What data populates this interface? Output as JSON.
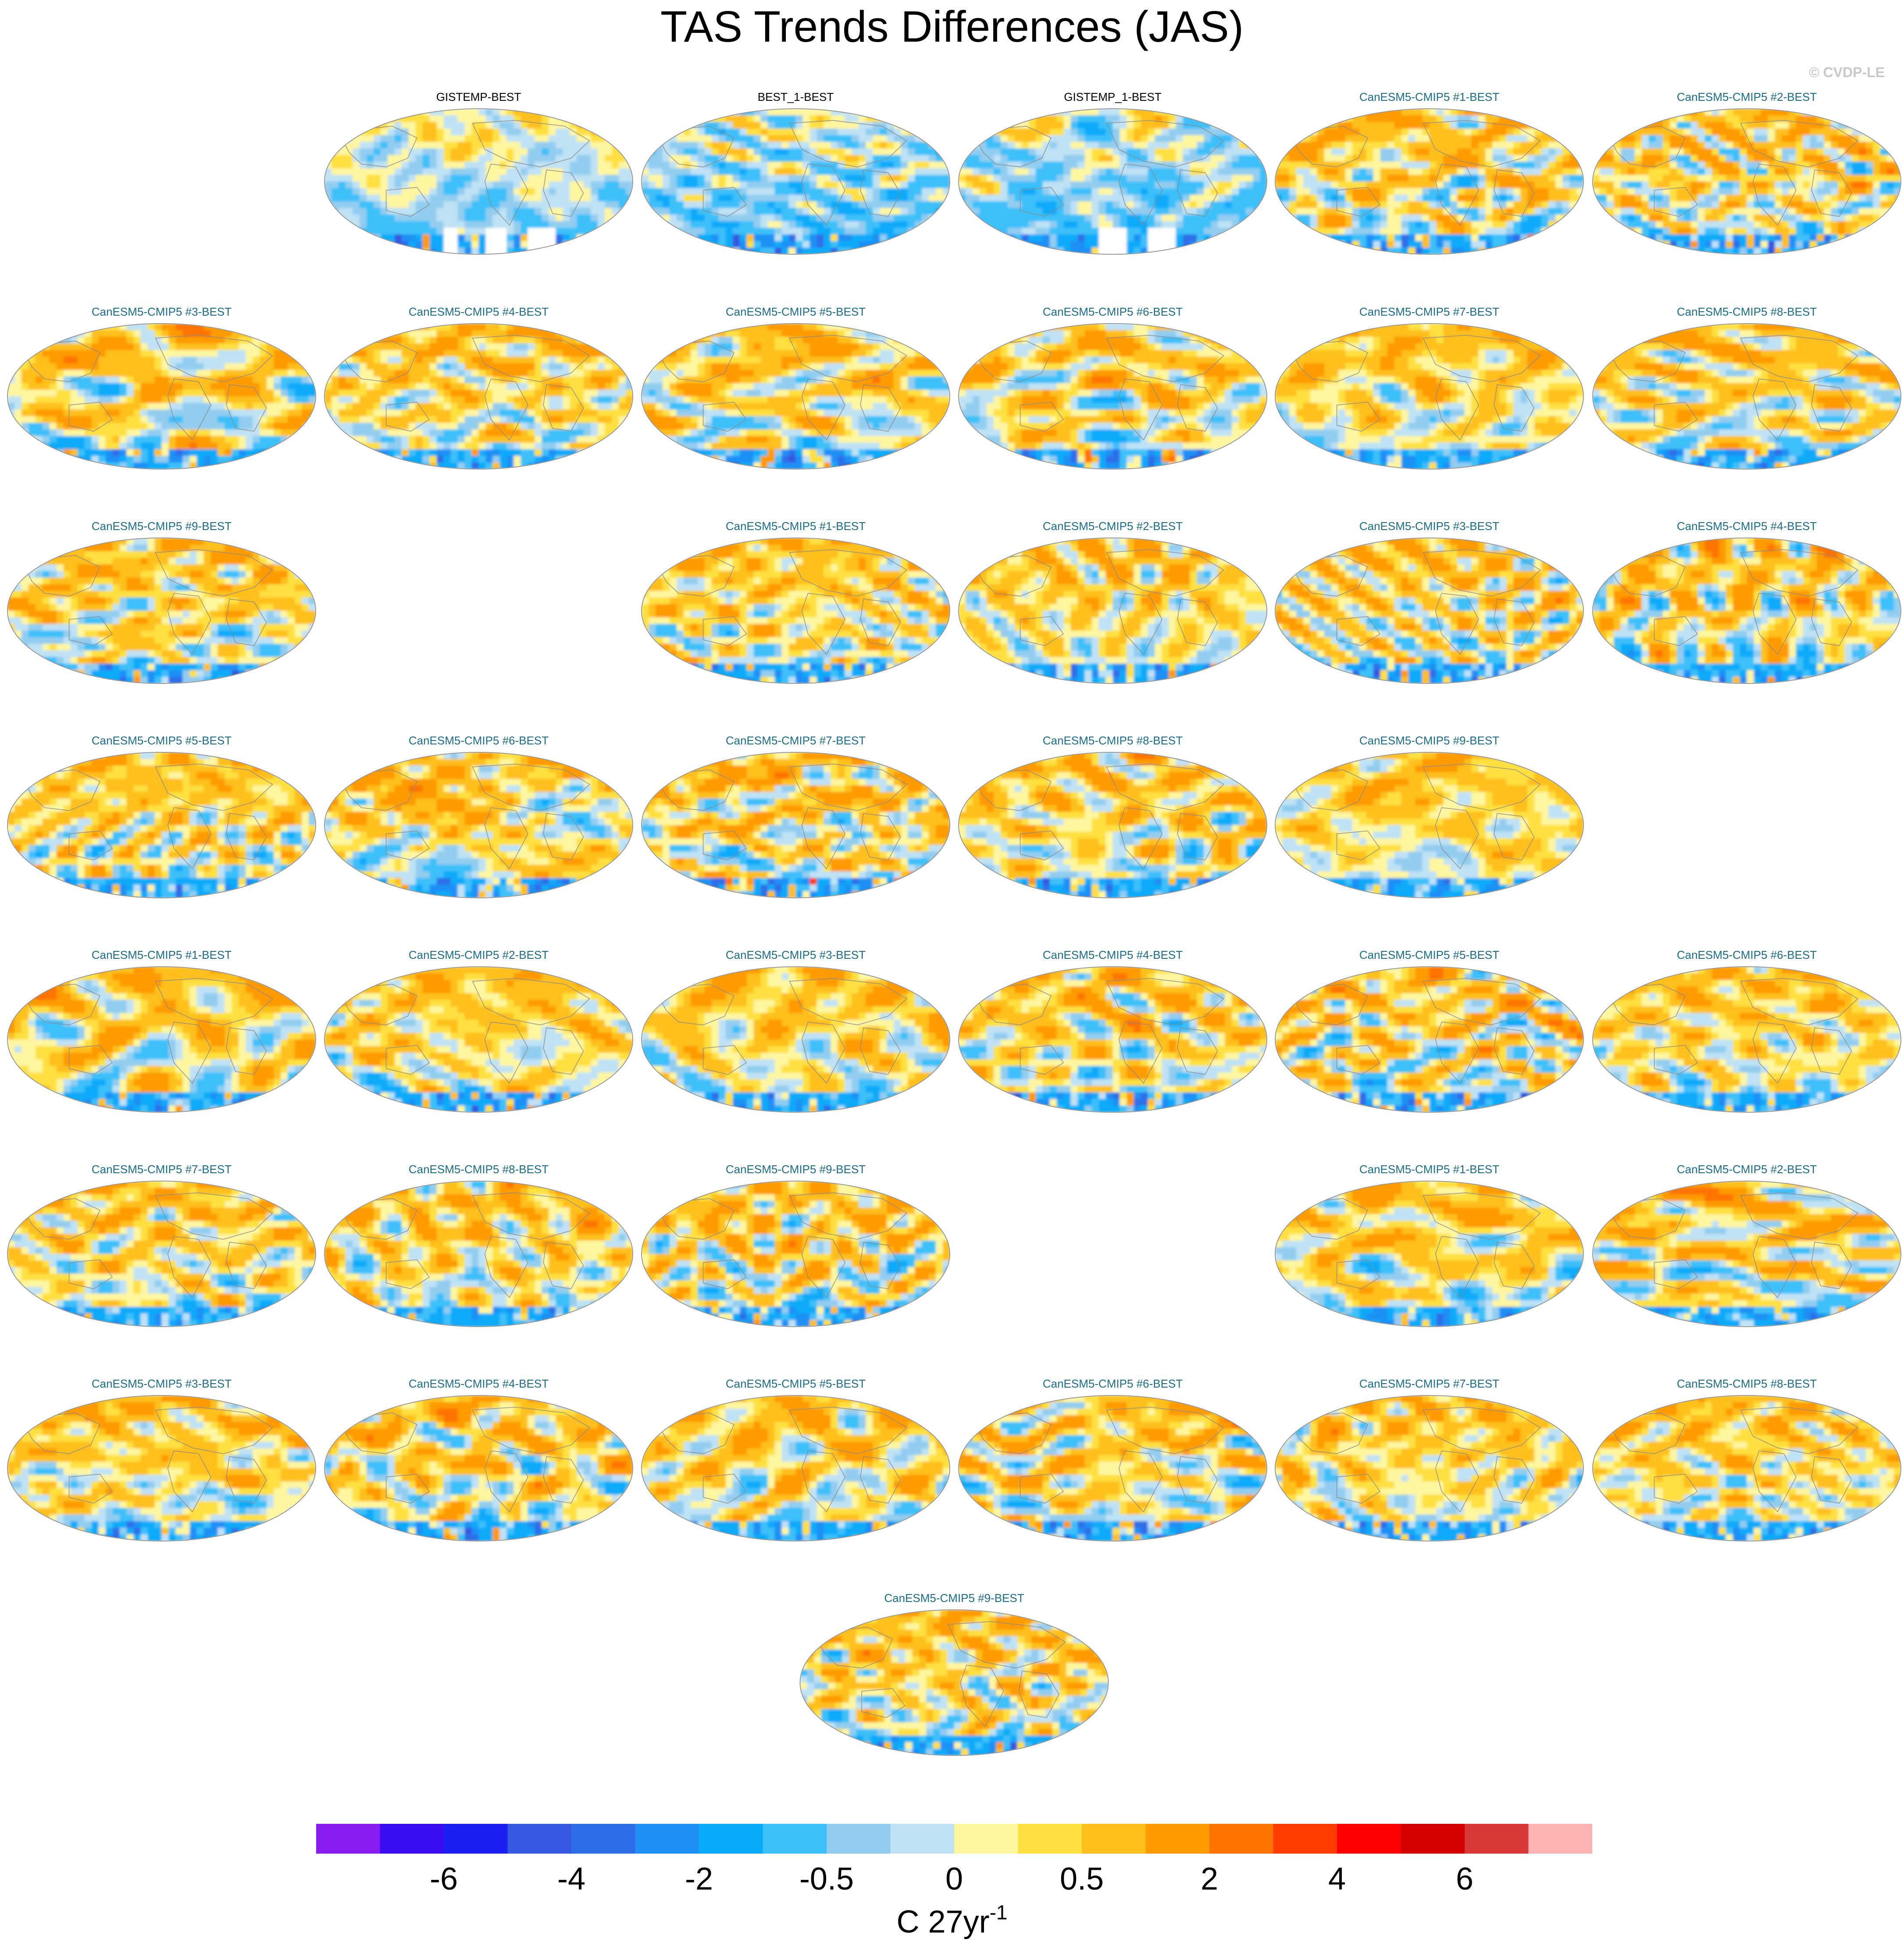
{
  "chart_data": {
    "type": "heatmap",
    "title": "TAS Trends Differences (JAS)",
    "copyright": "© CVDP-LE",
    "projection": "robinson",
    "colors": {
      "obs_title": "#000000",
      "model_title": "#1a6e8c",
      "coast": "#8a8a8a",
      "map_border": "#9a9a9a"
    },
    "panels": [
      {
        "label": "GISTEMP-BEST",
        "kind": "obs",
        "slot": [
          0,
          1
        ],
        "seed": 11,
        "bias": -0.2,
        "amp": 0.6,
        "missing": true
      },
      {
        "label": "BEST_1-BEST",
        "kind": "obs",
        "slot": [
          0,
          2
        ],
        "seed": 12,
        "bias": -0.4,
        "amp": 1.1,
        "missing": false
      },
      {
        "label": "GISTEMP_1-BEST",
        "kind": "obs",
        "slot": [
          0,
          3
        ],
        "seed": 13,
        "bias": -0.4,
        "amp": 1.1,
        "missing": true
      },
      {
        "label": "CanESM5-CMIP5 #1-BEST",
        "kind": "model",
        "slot": [
          0,
          4
        ],
        "seed": 21,
        "bias": 0.3,
        "amp": 1.3,
        "missing": false
      },
      {
        "label": "CanESM5-CMIP5 #2-BEST",
        "kind": "model",
        "slot": [
          0,
          5
        ],
        "seed": 22,
        "bias": 0.3,
        "amp": 1.3,
        "missing": false
      },
      {
        "label": "CanESM5-CMIP5 #3-BEST",
        "kind": "model",
        "slot": [
          1,
          0
        ],
        "seed": 23,
        "bias": 0.3,
        "amp": 1.3,
        "missing": false
      },
      {
        "label": "CanESM5-CMIP5 #4-BEST",
        "kind": "model",
        "slot": [
          1,
          1
        ],
        "seed": 24,
        "bias": 0.3,
        "amp": 1.3,
        "missing": false
      },
      {
        "label": "CanESM5-CMIP5 #5-BEST",
        "kind": "model",
        "slot": [
          1,
          2
        ],
        "seed": 25,
        "bias": 0.3,
        "amp": 1.3,
        "missing": false
      },
      {
        "label": "CanESM5-CMIP5 #6-BEST",
        "kind": "model",
        "slot": [
          1,
          3
        ],
        "seed": 26,
        "bias": 0.3,
        "amp": 1.3,
        "missing": false
      },
      {
        "label": "CanESM5-CMIP5 #7-BEST",
        "kind": "model",
        "slot": [
          1,
          4
        ],
        "seed": 27,
        "bias": 0.3,
        "amp": 1.3,
        "missing": false
      },
      {
        "label": "CanESM5-CMIP5 #8-BEST",
        "kind": "model",
        "slot": [
          1,
          5
        ],
        "seed": 28,
        "bias": 0.3,
        "amp": 1.3,
        "missing": false
      },
      {
        "label": "CanESM5-CMIP5 #9-BEST",
        "kind": "model",
        "slot": [
          2,
          0
        ],
        "seed": 29,
        "bias": 0.3,
        "amp": 1.3,
        "missing": false
      },
      {
        "label": "CanESM5-CMIP5 #1-BEST",
        "kind": "model",
        "slot": [
          2,
          2
        ],
        "seed": 31,
        "bias": 0.3,
        "amp": 1.3,
        "missing": false
      },
      {
        "label": "CanESM5-CMIP5 #2-BEST",
        "kind": "model",
        "slot": [
          2,
          3
        ],
        "seed": 32,
        "bias": 0.3,
        "amp": 1.3,
        "missing": false
      },
      {
        "label": "CanESM5-CMIP5 #3-BEST",
        "kind": "model",
        "slot": [
          2,
          4
        ],
        "seed": 33,
        "bias": 0.3,
        "amp": 1.3,
        "missing": false
      },
      {
        "label": "CanESM5-CMIP5 #4-BEST",
        "kind": "model",
        "slot": [
          2,
          5
        ],
        "seed": 34,
        "bias": 0.3,
        "amp": 1.3,
        "missing": false
      },
      {
        "label": "CanESM5-CMIP5 #5-BEST",
        "kind": "model",
        "slot": [
          3,
          0
        ],
        "seed": 35,
        "bias": 0.3,
        "amp": 1.3,
        "missing": false
      },
      {
        "label": "CanESM5-CMIP5 #6-BEST",
        "kind": "model",
        "slot": [
          3,
          1
        ],
        "seed": 36,
        "bias": 0.3,
        "amp": 1.3,
        "missing": false
      },
      {
        "label": "CanESM5-CMIP5 #7-BEST",
        "kind": "model",
        "slot": [
          3,
          2
        ],
        "seed": 37,
        "bias": 0.3,
        "amp": 1.3,
        "missing": false
      },
      {
        "label": "CanESM5-CMIP5 #8-BEST",
        "kind": "model",
        "slot": [
          3,
          3
        ],
        "seed": 38,
        "bias": 0.3,
        "amp": 1.3,
        "missing": false
      },
      {
        "label": "CanESM5-CMIP5 #9-BEST",
        "kind": "model",
        "slot": [
          3,
          4
        ],
        "seed": 39,
        "bias": 0.3,
        "amp": 1.3,
        "missing": false
      },
      {
        "label": "CanESM5-CMIP5 #1-BEST",
        "kind": "model",
        "slot": [
          4,
          0
        ],
        "seed": 41,
        "bias": 0.3,
        "amp": 1.3,
        "missing": false
      },
      {
        "label": "CanESM5-CMIP5 #2-BEST",
        "kind": "model",
        "slot": [
          4,
          1
        ],
        "seed": 42,
        "bias": 0.3,
        "amp": 1.3,
        "missing": false
      },
      {
        "label": "CanESM5-CMIP5 #3-BEST",
        "kind": "model",
        "slot": [
          4,
          2
        ],
        "seed": 43,
        "bias": 0.3,
        "amp": 1.3,
        "missing": false
      },
      {
        "label": "CanESM5-CMIP5 #4-BEST",
        "kind": "model",
        "slot": [
          4,
          3
        ],
        "seed": 44,
        "bias": 0.3,
        "amp": 1.3,
        "missing": false
      },
      {
        "label": "CanESM5-CMIP5 #5-BEST",
        "kind": "model",
        "slot": [
          4,
          4
        ],
        "seed": 45,
        "bias": 0.3,
        "amp": 1.3,
        "missing": false
      },
      {
        "label": "CanESM5-CMIP5 #6-BEST",
        "kind": "model",
        "slot": [
          4,
          5
        ],
        "seed": 46,
        "bias": 0.3,
        "amp": 1.3,
        "missing": false
      },
      {
        "label": "CanESM5-CMIP5 #7-BEST",
        "kind": "model",
        "slot": [
          5,
          0
        ],
        "seed": 47,
        "bias": 0.3,
        "amp": 1.3,
        "missing": false
      },
      {
        "label": "CanESM5-CMIP5 #8-BEST",
        "kind": "model",
        "slot": [
          5,
          1
        ],
        "seed": 48,
        "bias": 0.3,
        "amp": 1.3,
        "missing": false
      },
      {
        "label": "CanESM5-CMIP5 #9-BEST",
        "kind": "model",
        "slot": [
          5,
          2
        ],
        "seed": 49,
        "bias": 0.3,
        "amp": 1.3,
        "missing": false
      },
      {
        "label": "CanESM5-CMIP5 #1-BEST",
        "kind": "model",
        "slot": [
          5,
          4
        ],
        "seed": 51,
        "bias": 0.3,
        "amp": 1.3,
        "missing": false
      },
      {
        "label": "CanESM5-CMIP5 #2-BEST",
        "kind": "model",
        "slot": [
          5,
          5
        ],
        "seed": 52,
        "bias": 0.3,
        "amp": 1.3,
        "missing": false
      },
      {
        "label": "CanESM5-CMIP5 #3-BEST",
        "kind": "model",
        "slot": [
          6,
          0
        ],
        "seed": 53,
        "bias": 0.3,
        "amp": 1.3,
        "missing": false
      },
      {
        "label": "CanESM5-CMIP5 #4-BEST",
        "kind": "model",
        "slot": [
          6,
          1
        ],
        "seed": 54,
        "bias": 0.3,
        "amp": 1.3,
        "missing": false
      },
      {
        "label": "CanESM5-CMIP5 #5-BEST",
        "kind": "model",
        "slot": [
          6,
          2
        ],
        "seed": 55,
        "bias": 0.3,
        "amp": 1.3,
        "missing": false
      },
      {
        "label": "CanESM5-CMIP5 #6-BEST",
        "kind": "model",
        "slot": [
          6,
          3
        ],
        "seed": 56,
        "bias": 0.3,
        "amp": 1.3,
        "missing": false
      },
      {
        "label": "CanESM5-CMIP5 #7-BEST",
        "kind": "model",
        "slot": [
          6,
          4
        ],
        "seed": 57,
        "bias": 0.3,
        "amp": 1.3,
        "missing": false
      },
      {
        "label": "CanESM5-CMIP5 #8-BEST",
        "kind": "model",
        "slot": [
          6,
          5
        ],
        "seed": 58,
        "bias": 0.3,
        "amp": 1.3,
        "missing": false
      },
      {
        "label": "CanESM5-CMIP5 #9-BEST",
        "kind": "model",
        "slot": [
          7,
          2.5
        ],
        "seed": 59,
        "bias": 0.3,
        "amp": 1.3,
        "missing": false
      }
    ],
    "colorbar": {
      "colors": [
        "#8b1cf0",
        "#3a0cf2",
        "#1a1ef0",
        "#3658e0",
        "#2d6ee8",
        "#1e90f5",
        "#0aaafa",
        "#3cc0fa",
        "#92cdf0",
        "#bfe2f5",
        "#fff6a0",
        "#ffe040",
        "#ffbf1c",
        "#ff9a00",
        "#ff7300",
        "#ff3c00",
        "#ff0000",
        "#d20000",
        "#d83838",
        "#ffb2b2"
      ],
      "levels": [
        -8,
        -7,
        -6,
        -5,
        -4,
        -3,
        -2,
        -1,
        -0.5,
        -0.25,
        0,
        0.25,
        0.5,
        1,
        2,
        3,
        4,
        5,
        6,
        7
      ],
      "tick_labels": [
        "-6",
        "-4",
        "-2",
        "-0.5",
        "0",
        "0.5",
        "2",
        "4",
        "6"
      ],
      "unit_base": "C 27yr",
      "unit_exp": "-1"
    }
  }
}
